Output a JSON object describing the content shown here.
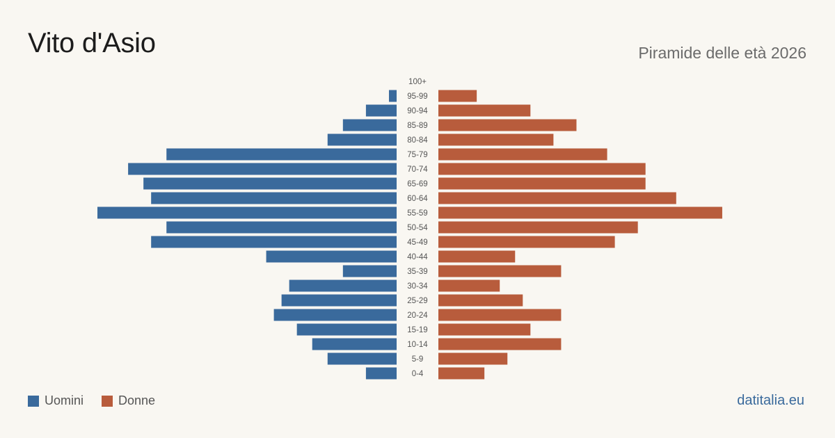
{
  "header": {
    "title": "Vito d'Asio",
    "subtitle": "Piramide delle età 2026"
  },
  "legend": {
    "men_label": "Uomini",
    "women_label": "Donne"
  },
  "footer": {
    "brand": "datitalia.eu"
  },
  "colors": {
    "men": "#3a6a9c",
    "women": "#b85c3c",
    "background": "#f9f7f2"
  },
  "chart_data": {
    "type": "bar",
    "orientation": "horizontal-pyramid",
    "categories": [
      "100+",
      "95-99",
      "90-94",
      "85-89",
      "80-84",
      "75-79",
      "70-74",
      "65-69",
      "60-64",
      "55-59",
      "50-54",
      "45-49",
      "40-44",
      "35-39",
      "30-34",
      "25-29",
      "20-24",
      "15-19",
      "10-14",
      "5-9",
      "0-4"
    ],
    "series": [
      {
        "name": "Uomini",
        "values": [
          0,
          1,
          4,
          7,
          9,
          30,
          35,
          33,
          32,
          39,
          30,
          32,
          17,
          7,
          14,
          15,
          16,
          13,
          11,
          9,
          4
        ]
      },
      {
        "name": "Donne",
        "values": [
          0,
          5,
          12,
          18,
          15,
          22,
          27,
          27,
          31,
          37,
          26,
          23,
          10,
          16,
          8,
          11,
          16,
          12,
          16,
          9,
          6
        ]
      }
    ],
    "xlim": [
      0,
      39
    ],
    "grid": false,
    "legend_position": "bottom-left"
  }
}
